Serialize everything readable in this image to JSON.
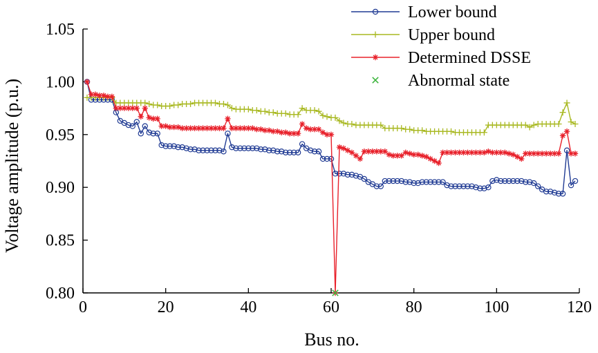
{
  "chart_data": {
    "type": "line",
    "xlabel": "Bus no.",
    "ylabel": "Voltage amplitude (p.u.)",
    "xlim": [
      0,
      120
    ],
    "ylim": [
      0.8,
      1.05
    ],
    "xticks": [
      0,
      20,
      40,
      60,
      80,
      100,
      120
    ],
    "yticks": [
      0.8,
      0.85,
      0.9,
      0.95,
      1.0,
      1.05
    ],
    "xtick_labels": [
      "0",
      "20",
      "40",
      "60",
      "80",
      "100",
      "120"
    ],
    "ytick_labels": [
      "0.80",
      "0.85",
      "0.90",
      "0.95",
      "1.00",
      "1.05"
    ],
    "grid": false,
    "legend_position": "top-right",
    "series": [
      {
        "name": "Lower bound",
        "color": "#1f3a93",
        "marker": "circle",
        "line": true,
        "x": [
          1,
          2,
          3,
          4,
          5,
          6,
          7,
          8,
          9,
          10,
          11,
          12,
          13,
          14,
          15,
          16,
          17,
          18,
          19,
          20,
          21,
          22,
          23,
          24,
          25,
          26,
          27,
          28,
          29,
          30,
          31,
          32,
          33,
          34,
          35,
          36,
          37,
          38,
          39,
          40,
          41,
          42,
          43,
          44,
          45,
          46,
          47,
          48,
          49,
          50,
          51,
          52,
          53,
          54,
          55,
          56,
          57,
          58,
          59,
          60,
          61,
          62,
          63,
          64,
          65,
          66,
          67,
          68,
          69,
          70,
          71,
          72,
          73,
          74,
          75,
          76,
          77,
          78,
          79,
          80,
          81,
          82,
          83,
          84,
          85,
          86,
          87,
          88,
          89,
          90,
          91,
          92,
          93,
          94,
          95,
          96,
          97,
          98,
          99,
          100,
          101,
          102,
          103,
          104,
          105,
          106,
          107,
          108,
          109,
          110,
          111,
          112,
          113,
          114,
          115,
          116,
          117,
          118,
          119
        ],
        "y": [
          1.0,
          0.983,
          0.983,
          0.983,
          0.983,
          0.983,
          0.983,
          0.971,
          0.963,
          0.961,
          0.959,
          0.958,
          0.962,
          0.951,
          0.958,
          0.952,
          0.951,
          0.951,
          0.94,
          0.939,
          0.939,
          0.939,
          0.938,
          0.938,
          0.937,
          0.936,
          0.936,
          0.935,
          0.935,
          0.935,
          0.935,
          0.935,
          0.935,
          0.934,
          0.951,
          0.938,
          0.937,
          0.937,
          0.937,
          0.937,
          0.937,
          0.937,
          0.936,
          0.936,
          0.935,
          0.935,
          0.934,
          0.934,
          0.933,
          0.933,
          0.933,
          0.933,
          0.941,
          0.937,
          0.935,
          0.934,
          0.934,
          0.927,
          0.927,
          0.927,
          0.913,
          0.913,
          0.913,
          0.912,
          0.912,
          0.911,
          0.91,
          0.908,
          0.905,
          0.903,
          0.901,
          0.901,
          0.906,
          0.906,
          0.906,
          0.906,
          0.906,
          0.905,
          0.905,
          0.904,
          0.904,
          0.905,
          0.905,
          0.905,
          0.905,
          0.905,
          0.905,
          0.902,
          0.901,
          0.901,
          0.901,
          0.901,
          0.901,
          0.901,
          0.9,
          0.899,
          0.899,
          0.9,
          0.906,
          0.907,
          0.906,
          0.906,
          0.906,
          0.906,
          0.906,
          0.906,
          0.905,
          0.905,
          0.904,
          0.901,
          0.898,
          0.896,
          0.896,
          0.895,
          0.894,
          0.894,
          0.935,
          0.902,
          0.906
        ]
      },
      {
        "name": "Upper bound",
        "color": "#a8b820",
        "marker": "plus",
        "line": true,
        "x": [
          1,
          2,
          3,
          4,
          5,
          6,
          7,
          8,
          9,
          10,
          11,
          12,
          13,
          14,
          15,
          16,
          17,
          18,
          19,
          20,
          21,
          22,
          23,
          24,
          25,
          26,
          27,
          28,
          29,
          30,
          31,
          32,
          33,
          34,
          35,
          36,
          37,
          38,
          39,
          40,
          41,
          42,
          43,
          44,
          45,
          46,
          47,
          48,
          49,
          50,
          51,
          52,
          53,
          54,
          55,
          56,
          57,
          58,
          59,
          60,
          61,
          62,
          63,
          64,
          65,
          66,
          67,
          68,
          69,
          70,
          71,
          72,
          73,
          74,
          75,
          76,
          77,
          78,
          79,
          80,
          81,
          82,
          83,
          84,
          85,
          86,
          87,
          88,
          89,
          90,
          91,
          92,
          93,
          94,
          95,
          96,
          97,
          98,
          99,
          100,
          101,
          102,
          103,
          104,
          105,
          106,
          107,
          108,
          109,
          110,
          111,
          112,
          113,
          114,
          115,
          116,
          117,
          118,
          119
        ],
        "y": [
          0.985,
          0.985,
          0.985,
          0.985,
          0.985,
          0.985,
          0.985,
          0.98,
          0.98,
          0.98,
          0.98,
          0.98,
          0.98,
          0.98,
          0.98,
          0.979,
          0.978,
          0.978,
          0.977,
          0.977,
          0.977,
          0.978,
          0.978,
          0.979,
          0.979,
          0.979,
          0.98,
          0.98,
          0.98,
          0.98,
          0.98,
          0.98,
          0.979,
          0.979,
          0.978,
          0.975,
          0.974,
          0.974,
          0.974,
          0.974,
          0.973,
          0.973,
          0.972,
          0.972,
          0.971,
          0.971,
          0.97,
          0.97,
          0.97,
          0.969,
          0.969,
          0.969,
          0.975,
          0.973,
          0.973,
          0.973,
          0.972,
          0.968,
          0.967,
          0.966,
          0.966,
          0.963,
          0.961,
          0.96,
          0.96,
          0.959,
          0.959,
          0.959,
          0.959,
          0.959,
          0.959,
          0.959,
          0.956,
          0.956,
          0.956,
          0.956,
          0.956,
          0.955,
          0.955,
          0.954,
          0.954,
          0.954,
          0.953,
          0.953,
          0.953,
          0.953,
          0.953,
          0.953,
          0.953,
          0.952,
          0.952,
          0.952,
          0.952,
          0.952,
          0.952,
          0.952,
          0.952,
          0.959,
          0.959,
          0.959,
          0.959,
          0.959,
          0.959,
          0.959,
          0.959,
          0.959,
          0.959,
          0.957,
          0.959,
          0.96,
          0.96,
          0.96,
          0.96,
          0.96,
          0.96,
          0.971,
          0.98,
          0.962,
          0.96
        ]
      },
      {
        "name": "Determined DSSE",
        "color": "#e8202a",
        "marker": "star",
        "line": true,
        "x": [
          1,
          2,
          3,
          4,
          5,
          6,
          7,
          8,
          9,
          10,
          11,
          12,
          13,
          14,
          15,
          16,
          17,
          18,
          19,
          20,
          21,
          22,
          23,
          24,
          25,
          26,
          27,
          28,
          29,
          30,
          31,
          32,
          33,
          34,
          35,
          36,
          37,
          38,
          39,
          40,
          41,
          42,
          43,
          44,
          45,
          46,
          47,
          48,
          49,
          50,
          51,
          52,
          53,
          54,
          55,
          56,
          57,
          58,
          59,
          60,
          61,
          62,
          63,
          64,
          65,
          66,
          67,
          68,
          69,
          70,
          71,
          72,
          73,
          74,
          75,
          76,
          77,
          78,
          79,
          80,
          81,
          82,
          83,
          84,
          85,
          86,
          87,
          88,
          89,
          90,
          91,
          92,
          93,
          94,
          95,
          96,
          97,
          98,
          99,
          100,
          101,
          102,
          103,
          104,
          105,
          106,
          107,
          108,
          109,
          110,
          111,
          112,
          113,
          114,
          115,
          116,
          117,
          118,
          119
        ],
        "y": [
          1.0,
          0.988,
          0.988,
          0.987,
          0.987,
          0.986,
          0.986,
          0.975,
          0.975,
          0.975,
          0.975,
          0.975,
          0.975,
          0.967,
          0.975,
          0.966,
          0.965,
          0.965,
          0.958,
          0.958,
          0.957,
          0.957,
          0.957,
          0.956,
          0.956,
          0.956,
          0.956,
          0.956,
          0.956,
          0.956,
          0.956,
          0.956,
          0.956,
          0.956,
          0.965,
          0.956,
          0.956,
          0.956,
          0.956,
          0.956,
          0.956,
          0.955,
          0.955,
          0.954,
          0.954,
          0.953,
          0.953,
          0.952,
          0.952,
          0.951,
          0.951,
          0.951,
          0.96,
          0.956,
          0.955,
          0.955,
          0.955,
          0.952,
          0.95,
          0.95,
          0.8,
          0.938,
          0.937,
          0.935,
          0.933,
          0.93,
          0.927,
          0.934,
          0.934,
          0.934,
          0.934,
          0.934,
          0.934,
          0.931,
          0.93,
          0.93,
          0.93,
          0.933,
          0.932,
          0.931,
          0.931,
          0.93,
          0.929,
          0.927,
          0.925,
          0.923,
          0.933,
          0.933,
          0.933,
          0.933,
          0.933,
          0.933,
          0.933,
          0.933,
          0.933,
          0.933,
          0.933,
          0.934,
          0.933,
          0.933,
          0.933,
          0.933,
          0.932,
          0.931,
          0.929,
          0.927,
          0.932,
          0.932,
          0.932,
          0.932,
          0.932,
          0.932,
          0.932,
          0.932,
          0.932,
          0.949,
          0.953,
          0.932,
          0.932
        ]
      },
      {
        "name": "Abnormal state",
        "color": "#3cb43c",
        "marker": "x",
        "line": false,
        "x": [
          61
        ],
        "y": [
          0.8
        ]
      }
    ]
  }
}
